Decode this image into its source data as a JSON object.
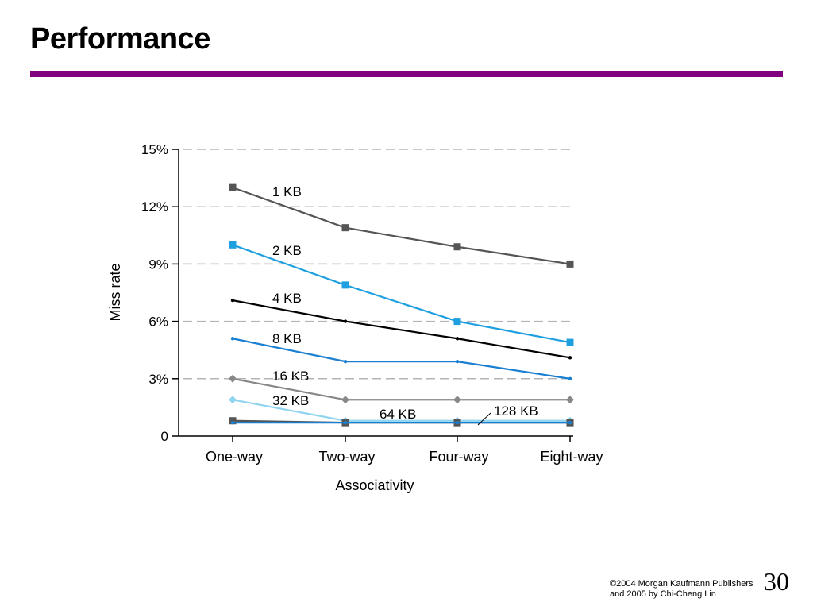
{
  "slide": {
    "title": "Performance",
    "rule_color": "#800080",
    "footer_line1": "©2004 Morgan Kaufmann Publishers",
    "footer_line2": "and 2005 by Chi-Cheng Lin",
    "page_number": "30"
  },
  "chart_data": {
    "type": "line",
    "xlabel": "Associativity",
    "ylabel": "Miss rate",
    "categories": [
      "One-way",
      "Two-way",
      "Four-way",
      "Eight-way"
    ],
    "ylim": [
      0,
      15
    ],
    "yticks": [
      0,
      3,
      6,
      9,
      12,
      15
    ],
    "ytick_labels": [
      "0",
      "3%",
      "6%",
      "9%",
      "12%",
      "15%"
    ],
    "grid": "horizontal dashed",
    "series": [
      {
        "name": "1 KB",
        "values": [
          13.0,
          10.9,
          9.9,
          9.0
        ],
        "color": "#555555",
        "marker": "square"
      },
      {
        "name": "2 KB",
        "values": [
          10.0,
          7.9,
          6.0,
          4.9
        ],
        "color": "#1ea0e0",
        "marker": "square"
      },
      {
        "name": "4 KB",
        "values": [
          7.1,
          6.0,
          5.1,
          4.1
        ],
        "color": "#000000",
        "marker": "dot"
      },
      {
        "name": "8 KB",
        "values": [
          5.1,
          3.9,
          3.9,
          3.0
        ],
        "color": "#1a7fd0",
        "marker": "dot"
      },
      {
        "name": "16 KB",
        "values": [
          3.0,
          1.9,
          1.9,
          1.9
        ],
        "color": "#888888",
        "marker": "diamond"
      },
      {
        "name": "32 KB",
        "values": [
          1.9,
          0.8,
          0.8,
          0.8
        ],
        "color": "#90d4f0",
        "marker": "diamond"
      },
      {
        "name": "64 KB",
        "values": [
          0.8,
          0.7,
          0.7,
          0.7
        ],
        "color": "#555555",
        "marker": "square"
      },
      {
        "name": "128 KB",
        "values": [
          0.7,
          0.7,
          0.7,
          0.7
        ],
        "color": "#1a7fd0",
        "marker": "dot"
      }
    ]
  }
}
